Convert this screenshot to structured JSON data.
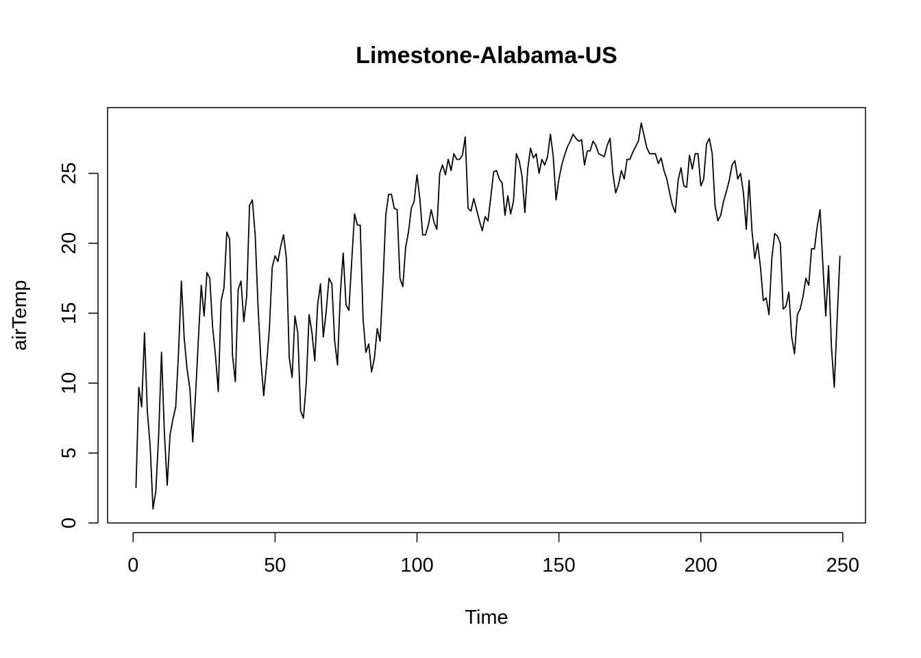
{
  "chart_data": {
    "type": "line",
    "title": "Limestone-Alabama-US",
    "xlabel": "Time",
    "ylabel": "airTemp",
    "xlim": [
      -9,
      258
    ],
    "ylim": [
      0,
      29.7
    ],
    "xticks": [
      0,
      50,
      100,
      150,
      200,
      250
    ],
    "yticks": [
      0,
      5,
      10,
      15,
      20,
      25
    ],
    "grid": false,
    "line_color": "#000000",
    "series": [
      {
        "x_start": 1,
        "values": [
          2.5,
          9.7,
          8.3,
          13.6,
          8.0,
          5.5,
          1.0,
          2.3,
          6.3,
          12.2,
          6.5,
          2.7,
          6.3,
          7.4,
          8.3,
          12.2,
          17.3,
          13.2,
          11.0,
          9.6,
          5.8,
          9.2,
          13.2,
          17.0,
          14.8,
          17.9,
          17.5,
          14.0,
          12.0,
          9.4,
          15.9,
          16.8,
          20.8,
          20.3,
          12.0,
          10.1,
          16.7,
          17.3,
          14.4,
          16.2,
          22.7,
          23.1,
          20.6,
          15.5,
          11.6,
          9.1,
          11.3,
          13.9,
          18.3,
          19.1,
          18.7,
          19.8,
          20.6,
          18.9,
          11.8,
          10.4,
          14.8,
          13.6,
          8.0,
          7.5,
          10.0,
          14.9,
          13.6,
          11.6,
          15.6,
          17.1,
          13.3,
          15.1,
          17.5,
          17.1,
          13.0,
          11.3,
          16.4,
          19.3,
          15.6,
          15.2,
          18.7,
          22.1,
          21.3,
          21.3,
          14.6,
          12.2,
          12.8,
          10.8,
          11.8,
          13.9,
          13.0,
          17.1,
          22.0,
          23.5,
          23.5,
          22.5,
          22.4,
          17.5,
          16.9,
          19.7,
          20.8,
          22.5,
          23.0,
          24.9,
          23.2,
          20.6,
          20.6,
          21.3,
          22.4,
          21.5,
          21.0,
          25.0,
          25.6,
          24.9,
          26.0,
          25.2,
          26.4,
          26.0,
          26.0,
          26.3,
          27.6,
          22.5,
          22.3,
          23.2,
          22.4,
          21.6,
          20.9,
          21.9,
          21.6,
          23.3,
          25.1,
          25.2,
          24.6,
          24.3,
          22.0,
          23.4,
          22.1,
          23.0,
          26.4,
          25.9,
          24.8,
          22.2,
          25.3,
          26.8,
          26.1,
          26.4,
          25.0,
          26.0,
          25.6,
          26.2,
          27.8,
          26.2,
          23.1,
          24.6,
          25.6,
          26.3,
          26.9,
          27.3,
          27.8,
          27.5,
          27.3,
          27.4,
          25.6,
          26.6,
          26.6,
          27.3,
          27.0,
          26.4,
          26.3,
          26.2,
          27.0,
          27.5,
          25.0,
          23.6,
          24.2,
          25.2,
          24.6,
          26.0,
          26.0,
          26.5,
          26.9,
          27.3,
          28.6,
          27.7,
          26.8,
          26.4,
          26.4,
          26.4,
          25.7,
          26.1,
          25.2,
          24.6,
          23.6,
          22.7,
          22.2,
          24.5,
          25.4,
          24.1,
          24.0,
          26.3,
          25.3,
          26.4,
          26.4,
          24.1,
          24.6,
          27.1,
          27.5,
          26.4,
          22.7,
          21.6,
          22.0,
          23.0,
          23.7,
          24.5,
          25.6,
          25.9,
          24.6,
          25.0,
          23.6,
          21.0,
          24.5,
          20.9,
          18.9,
          20.0,
          18.3,
          15.9,
          16.1,
          14.9,
          18.9,
          20.7,
          20.5,
          20.0,
          15.3,
          15.5,
          16.5,
          13.3,
          12.1,
          14.9,
          15.3,
          16.2,
          17.5,
          17.0,
          19.6,
          19.6,
          21.2,
          22.4,
          18.4,
          14.8,
          18.4,
          12.6,
          9.7,
          14.5,
          19.1
        ]
      }
    ]
  }
}
